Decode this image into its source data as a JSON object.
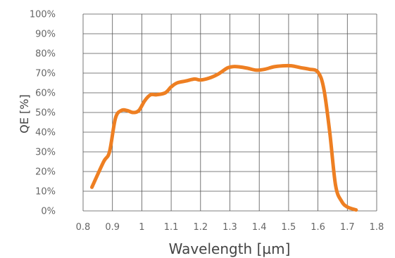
{
  "chart_data": {
    "type": "line",
    "title": "",
    "xlabel": "Wavelength [µm]",
    "ylabel": "QE [%]",
    "xlim": [
      0.8,
      1.8
    ],
    "ylim": [
      0,
      100
    ],
    "x_ticks": [
      0.8,
      0.9,
      1.0,
      1.1,
      1.2,
      1.3,
      1.4,
      1.5,
      1.6,
      1.7,
      1.8
    ],
    "x_tick_labels": [
      "0.8",
      "0.9",
      "1",
      "1.1",
      "1.2",
      "1.3",
      "1.4",
      "1.5",
      "1.6",
      "1.7",
      "1.8"
    ],
    "y_ticks": [
      0,
      10,
      20,
      30,
      40,
      50,
      60,
      70,
      80,
      90,
      100
    ],
    "y_tick_labels": [
      "0%",
      "10%",
      "20%",
      "30%",
      "40%",
      "50%",
      "60%",
      "70%",
      "80%",
      "90%",
      "100%"
    ],
    "grid": true,
    "legend": "none",
    "line_color": "#ee7f22",
    "series": [
      {
        "x": [
          0.83,
          0.87,
          0.89,
          0.91,
          0.93,
          0.95,
          0.97,
          0.99,
          1.01,
          1.03,
          1.05,
          1.08,
          1.1,
          1.12,
          1.15,
          1.18,
          1.2,
          1.23,
          1.26,
          1.29,
          1.31,
          1.33,
          1.36,
          1.39,
          1.42,
          1.45,
          1.48,
          1.51,
          1.54,
          1.57,
          1.6,
          1.62,
          1.64,
          1.66,
          1.68,
          1.7,
          1.73
        ],
        "y": [
          12,
          25,
          30,
          47,
          51,
          51,
          50,
          51,
          56,
          59,
          59,
          60,
          63,
          65,
          66,
          67,
          66.5,
          67.5,
          69.5,
          72.5,
          73.3,
          73.2,
          72.5,
          71.5,
          72,
          73.2,
          73.7,
          73.7,
          72.8,
          72,
          70.5,
          62,
          40,
          13,
          5,
          2,
          0.5
        ]
      }
    ]
  }
}
